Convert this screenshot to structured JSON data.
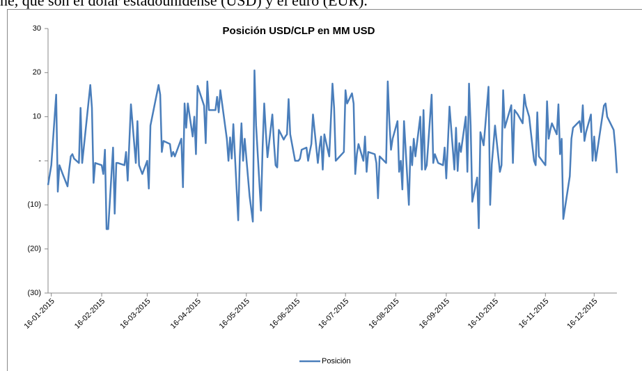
{
  "document_text": "ne, que son el dólar estadounidense (USD) y el euro (EUR).",
  "chart_data": {
    "type": "line",
    "title": "Posición USD/CLP en MM USD",
    "x": [
      "2015-01-14",
      "2015-01-16",
      "2015-01-19",
      "2015-01-20",
      "2015-01-21",
      "2015-01-23",
      "2015-01-26",
      "2015-01-27",
      "2015-01-28",
      "2015-01-29",
      "2015-01-30",
      "2015-02-02",
      "2015-02-03",
      "2015-02-04",
      "2015-02-05",
      "2015-02-09",
      "2015-02-10",
      "2015-02-11",
      "2015-02-12",
      "2015-02-16",
      "2015-02-17",
      "2015-02-18",
      "2015-02-19",
      "2015-02-20",
      "2015-02-23",
      "2015-02-24",
      "2015-02-25",
      "2015-02-26",
      "2015-03-02",
      "2015-03-03",
      "2015-03-04",
      "2015-03-06",
      "2015-03-09",
      "2015-03-10",
      "2015-03-11",
      "2015-03-13",
      "2015-03-16",
      "2015-03-17",
      "2015-03-18",
      "2015-03-23",
      "2015-03-24",
      "2015-03-25",
      "2015-03-26",
      "2015-03-30",
      "2015-03-31",
      "2015-04-01",
      "2015-04-02",
      "2015-04-06",
      "2015-04-07",
      "2015-04-08",
      "2015-04-09",
      "2015-04-10",
      "2015-04-13",
      "2015-04-14",
      "2015-04-15",
      "2015-04-16",
      "2015-04-20",
      "2015-04-21",
      "2015-04-22",
      "2015-04-23",
      "2015-04-27",
      "2015-04-28",
      "2015-04-29",
      "2015-04-30",
      "2015-05-04",
      "2015-05-05",
      "2015-05-06",
      "2015-05-07",
      "2015-05-08",
      "2015-05-11",
      "2015-05-12",
      "2015-05-13",
      "2015-05-14",
      "2015-05-15",
      "2015-05-18",
      "2015-05-20",
      "2015-05-21",
      "2015-05-22",
      "2015-05-25",
      "2015-05-26",
      "2015-05-27",
      "2015-05-28",
      "2015-05-29",
      "2015-06-01",
      "2015-06-02",
      "2015-06-03",
      "2015-06-04",
      "2015-06-05",
      "2015-06-08",
      "2015-06-09",
      "2015-06-10",
      "2015-06-11",
      "2015-06-12",
      "2015-06-15",
      "2015-06-17",
      "2015-06-18",
      "2015-06-19",
      "2015-06-22",
      "2015-06-23",
      "2015-06-24",
      "2015-06-25",
      "2015-06-26",
      "2015-06-29",
      "2015-06-30",
      "2015-07-01",
      "2015-07-02",
      "2015-07-03",
      "2015-07-06",
      "2015-07-08",
      "2015-07-09",
      "2015-07-10",
      "2015-07-13",
      "2015-07-15",
      "2015-07-16",
      "2015-07-17",
      "2015-07-20",
      "2015-07-21",
      "2015-07-22",
      "2015-07-23",
      "2015-07-24",
      "2015-07-27",
      "2015-07-28",
      "2015-07-29",
      "2015-07-30",
      "2015-08-03",
      "2015-08-04",
      "2015-08-05",
      "2015-08-06",
      "2015-08-10",
      "2015-08-11",
      "2015-08-12",
      "2015-08-13",
      "2015-08-14",
      "2015-08-17",
      "2015-08-18",
      "2015-08-19",
      "2015-08-20",
      "2015-08-21",
      "2015-08-24",
      "2015-08-25",
      "2015-08-26",
      "2015-08-27",
      "2015-08-28",
      "2015-08-31",
      "2015-09-01",
      "2015-09-02",
      "2015-09-03",
      "2015-09-04",
      "2015-09-07",
      "2015-09-08",
      "2015-09-09",
      "2015-09-10",
      "2015-09-11",
      "2015-09-14",
      "2015-09-15",
      "2015-09-16",
      "2015-09-17",
      "2015-09-18",
      "2015-09-21",
      "2015-09-22",
      "2015-09-23",
      "2015-09-24",
      "2015-09-25",
      "2015-09-28",
      "2015-09-29",
      "2015-09-30",
      "2015-10-01",
      "2015-10-02",
      "2015-10-05",
      "2015-10-06",
      "2015-10-07",
      "2015-10-09",
      "2015-10-12",
      "2015-10-13",
      "2015-10-14",
      "2015-10-16",
      "2015-10-19",
      "2015-10-20",
      "2015-10-21",
      "2015-10-22",
      "2015-10-26",
      "2015-10-27",
      "2015-10-28",
      "2015-10-30",
      "2015-11-02",
      "2015-11-03",
      "2015-11-04",
      "2015-11-06",
      "2015-11-09",
      "2015-11-10",
      "2015-11-11",
      "2015-11-12",
      "2015-11-16",
      "2015-11-17",
      "2015-11-18",
      "2015-11-19",
      "2015-11-20",
      "2015-11-23",
      "2015-11-24",
      "2015-11-25",
      "2015-11-26",
      "2015-11-27",
      "2015-12-01",
      "2015-12-02",
      "2015-12-03",
      "2015-12-07",
      "2015-12-08",
      "2015-12-09",
      "2015-12-10",
      "2015-12-11",
      "2015-12-14",
      "2015-12-15",
      "2015-12-16",
      "2015-12-17",
      "2015-12-21",
      "2015-12-22",
      "2015-12-23",
      "2015-12-24",
      "2015-12-28",
      "2015-12-29",
      "2015-12-30"
    ],
    "series": [
      {
        "name": "Posición",
        "color": "#4a7ebb",
        "values": [
          -5.5,
          -1,
          15,
          -7,
          -1,
          -3,
          -5.8,
          -2,
          1,
          1.5,
          0.5,
          -0.5,
          12,
          -0.5,
          3,
          17.2,
          12,
          -5,
          -0.5,
          -1,
          -3,
          2.5,
          -15.5,
          -15.5,
          3,
          -12,
          -0.5,
          -0.5,
          -1,
          2,
          -4.5,
          12.8,
          -0.5,
          9,
          -1,
          -3,
          0,
          -6.3,
          8,
          17.2,
          15,
          2,
          4.5,
          3.8,
          1,
          2,
          1,
          5,
          -6,
          13,
          7.5,
          13,
          5.5,
          10,
          1.5,
          17,
          12.5,
          4,
          18,
          11.5,
          11.5,
          14.5,
          11,
          16,
          5,
          0,
          5.3,
          0.5,
          8.3,
          -13.5,
          1,
          8.5,
          0,
          5,
          -8,
          -13.8,
          20.5,
          8,
          -11.3,
          3,
          13,
          6.5,
          0.8,
          10.5,
          4,
          -1,
          -1.5,
          7,
          4.8,
          5.5,
          6,
          14,
          6,
          0,
          0,
          0.5,
          2.5,
          3,
          0,
          2,
          3.8,
          10.5,
          -0.5,
          3,
          5.5,
          -2,
          6,
          1,
          17.5,
          12,
          0,
          1.2,
          2,
          16,
          13,
          15.3,
          13,
          -3,
          1.5,
          3.8,
          0,
          5.5,
          -2.5,
          2,
          1.5,
          -0.5,
          -8.5,
          1,
          -0.5,
          18,
          9,
          2.5,
          5,
          9,
          -2.5,
          0,
          -6.5,
          9,
          -10,
          3.2,
          -1,
          5,
          1,
          10,
          -2,
          11.5,
          -2,
          -1,
          15,
          -0.5,
          1.5,
          0.5,
          -0.5,
          -1,
          3,
          -4,
          4,
          12.3,
          -2,
          7.5,
          -2.3,
          4,
          2,
          10,
          -2.5,
          17.5,
          8,
          -9.3,
          -3.8,
          -15.3,
          6.5,
          3.5,
          16.8,
          -10,
          -0.8,
          8,
          -2.5,
          -1,
          16,
          7.5,
          12.6,
          -0.5,
          11.5,
          10.5,
          8.5,
          15,
          12.5,
          10,
          0,
          -1,
          11,
          1,
          -1,
          13.5,
          5,
          7,
          8.5,
          6,
          12.8,
          1.5,
          5,
          -13.2,
          -3.5,
          5,
          7.5,
          9,
          6.5,
          12.6,
          4.5,
          6.5,
          10.5,
          0,
          5.5,
          0,
          10,
          12.5,
          13,
          10,
          7,
          3,
          -2.8
        ]
      }
    ],
    "xlim": [
      "2015-01-14",
      "2015-12-30"
    ],
    "xticks": [
      {
        "value": "2015-01-16",
        "label": "16-01-2015"
      },
      {
        "value": "2015-02-16",
        "label": "16-02-2015"
      },
      {
        "value": "2015-03-16",
        "label": "16-03-2015"
      },
      {
        "value": "2015-04-16",
        "label": "16-04-2015"
      },
      {
        "value": "2015-05-16",
        "label": "16-05-2015"
      },
      {
        "value": "2015-06-16",
        "label": "16-06-2015"
      },
      {
        "value": "2015-07-16",
        "label": "16-07-2015"
      },
      {
        "value": "2015-08-16",
        "label": "16-08-2015"
      },
      {
        "value": "2015-09-16",
        "label": "16-09-2015"
      },
      {
        "value": "2015-10-16",
        "label": "16-10-2015"
      },
      {
        "value": "2015-11-16",
        "label": "16-11-2015"
      },
      {
        "value": "2015-12-16",
        "label": "16-12-2015"
      }
    ],
    "ylim": [
      -30,
      30
    ],
    "yticks": [
      {
        "value": -30,
        "label": "(30)"
      },
      {
        "value": -20,
        "label": "(20)"
      },
      {
        "value": -10,
        "label": "(10)"
      },
      {
        "value": 0,
        "label": "-"
      },
      10,
      20,
      30
    ],
    "grid": false,
    "legend": "bottom"
  }
}
